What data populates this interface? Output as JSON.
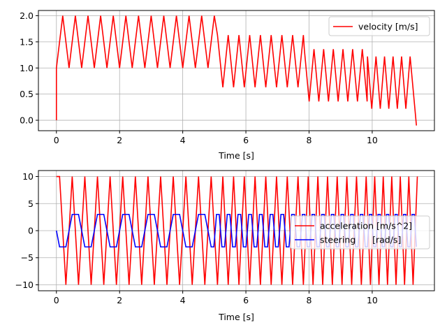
{
  "chart_data": [
    {
      "type": "line",
      "xlabel": "Time [s]",
      "ylabel": "",
      "xlim": [
        -0.57,
        11.97
      ],
      "ylim": [
        -0.2,
        2.1
      ],
      "xticks": [
        0,
        2,
        4,
        6,
        8,
        10
      ],
      "yticks": [
        0.0,
        0.5,
        1.0,
        1.5,
        2.0
      ],
      "ytick_labels": [
        "0.0",
        "0.5",
        "1.0",
        "1.5",
        "2.0"
      ],
      "grid": true,
      "legend_position": "upper-right",
      "series": [
        {
          "name": "velocity [m/s]",
          "color": "#ff0000",
          "segments": [
            {
              "t_start": 0.0,
              "t_end": 5.1,
              "low": 1.0,
              "high": 2.0,
              "half_period": 0.2
            },
            {
              "t_start": 5.1,
              "t_end": 7.85,
              "low": 0.63,
              "high": 1.63,
              "half_period": 0.17
            },
            {
              "t_start": 7.85,
              "t_end": 9.85,
              "low": 0.36,
              "high": 1.36,
              "half_period": 0.153
            },
            {
              "t_start": 9.85,
              "t_end": 11.2,
              "low": 0.22,
              "high": 1.22,
              "half_period": 0.135
            }
          ],
          "start": {
            "t": 0.0,
            "v": 0.0
          },
          "end": {
            "t": 11.4,
            "v": -0.1
          }
        }
      ]
    },
    {
      "type": "line",
      "xlabel": "Time [s]",
      "ylabel": "",
      "xlim": [
        -0.57,
        11.97
      ],
      "ylim": [
        -11.1,
        11.1
      ],
      "xticks": [
        0,
        2,
        4,
        6,
        8,
        10
      ],
      "yticks": [
        -10,
        -5,
        0,
        5,
        10
      ],
      "ytick_labels": [
        "−10",
        "−5",
        "0",
        "5",
        "10"
      ],
      "grid": true,
      "legend_position": "center-right",
      "series": [
        {
          "name": "acceleration [m/s^2]",
          "color": "#ff0000",
          "amplitude": 10,
          "period_segments": [
            {
              "t_start": 0.0,
              "t_end": 5.1,
              "period": 0.4
            },
            {
              "t_start": 5.1,
              "t_end": 7.85,
              "period": 0.34
            },
            {
              "t_start": 7.85,
              "t_end": 9.85,
              "period": 0.306
            },
            {
              "t_start": 9.85,
              "t_end": 11.45,
              "period": 0.27
            }
          ]
        },
        {
          "name": "steering      [rad/s]",
          "color": "#0000ff",
          "amplitude": 3,
          "period_segments": [
            {
              "t_start": 0.0,
              "t_end": 5.1,
              "period": 0.8
            },
            {
              "t_start": 5.1,
              "t_end": 7.85,
              "period": 0.34
            },
            {
              "t_start": 7.85,
              "t_end": 9.85,
              "period": 0.306
            },
            {
              "t_start": 9.85,
              "t_end": 11.45,
              "period": 0.27
            }
          ]
        }
      ]
    }
  ]
}
